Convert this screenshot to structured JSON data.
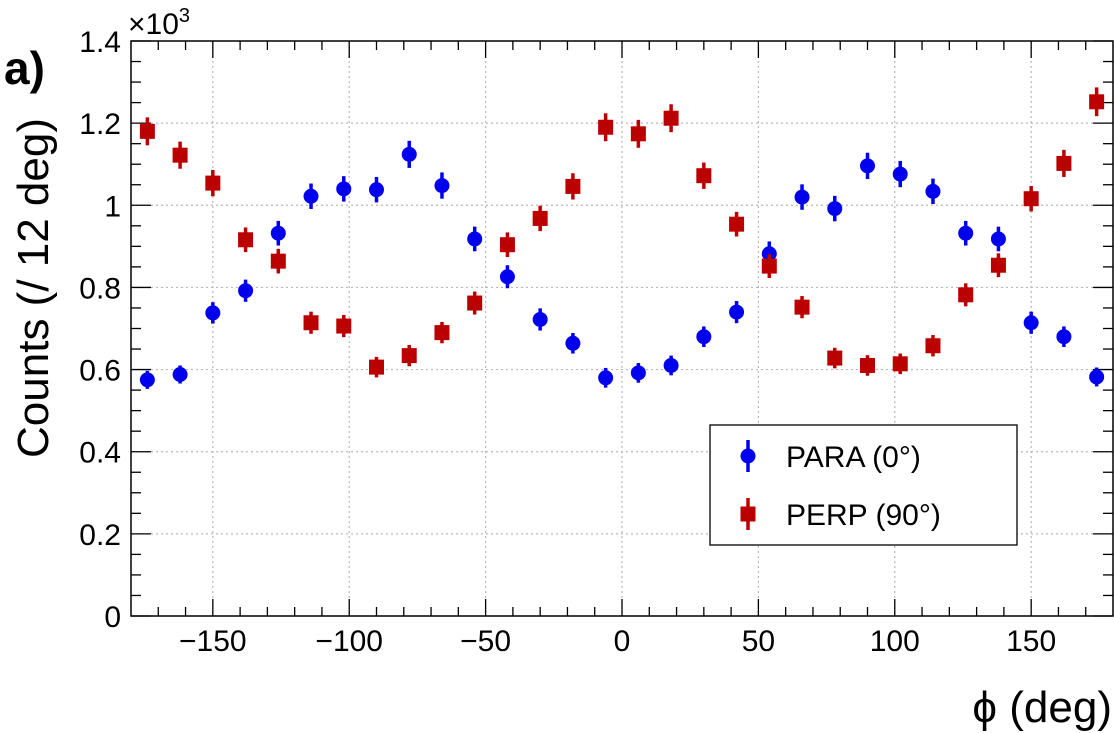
{
  "panel_label": "a)",
  "chart_data": {
    "type": "scatter",
    "xlabel": "ϕ (deg)",
    "ylabel": "Counts (/ 12 deg)",
    "y_exponent_label": "×10",
    "y_exponent_power": "3",
    "xlim": [
      -180,
      180
    ],
    "ylim": [
      0,
      1.4
    ],
    "x_ticks": [
      -150,
      -100,
      -50,
      0,
      50,
      100,
      150
    ],
    "x_tick_labels": [
      "−150",
      "−100",
      "−50",
      "0",
      "50",
      "100",
      "150"
    ],
    "y_ticks": [
      0,
      0.2,
      0.4,
      0.6,
      0.8,
      1,
      1.2,
      1.4
    ],
    "y_tick_labels": [
      "0",
      "0.2",
      "0.4",
      "0.6",
      "0.8",
      "1",
      "1.2",
      "1.4"
    ],
    "grid": true,
    "legend_position": "bottom-right",
    "x": [
      -174,
      -162,
      -150,
      -138,
      -126,
      -114,
      -102,
      -90,
      -78,
      -66,
      -54,
      -42,
      -30,
      -18,
      -6,
      6,
      18,
      30,
      42,
      54,
      66,
      78,
      90,
      102,
      114,
      126,
      138,
      150,
      162,
      174
    ],
    "series": [
      {
        "name": "PARA (0°)",
        "marker": "circle",
        "color": "#0000ee",
        "values": [
          0.575,
          0.588,
          0.738,
          0.792,
          0.932,
          1.022,
          1.04,
          1.038,
          1.124,
          1.048,
          0.918,
          0.826,
          0.722,
          0.664,
          0.58,
          0.592,
          0.61,
          0.68,
          0.74,
          0.882,
          1.02,
          0.992,
          1.096,
          1.076,
          1.034,
          0.932,
          0.918,
          0.714,
          0.68,
          0.582
        ],
        "errors": [
          0.022,
          0.022,
          0.026,
          0.027,
          0.03,
          0.031,
          0.031,
          0.031,
          0.033,
          0.032,
          0.03,
          0.028,
          0.027,
          0.025,
          0.024,
          0.024,
          0.024,
          0.025,
          0.027,
          0.03,
          0.031,
          0.031,
          0.032,
          0.032,
          0.031,
          0.03,
          0.03,
          0.027,
          0.025,
          0.023
        ]
      },
      {
        "name": "PERP (90°)",
        "marker": "square",
        "color": "#bb0000",
        "values": [
          1.18,
          1.122,
          1.054,
          0.916,
          0.864,
          0.714,
          0.706,
          0.606,
          0.634,
          0.69,
          0.762,
          0.904,
          0.968,
          1.046,
          1.19,
          1.174,
          1.212,
          1.072,
          0.954,
          0.852,
          0.752,
          0.628,
          0.61,
          0.614,
          0.658,
          0.782,
          0.854,
          1.016,
          1.102,
          1.252
        ],
        "errors": [
          0.034,
          0.033,
          0.032,
          0.03,
          0.03,
          0.027,
          0.027,
          0.025,
          0.026,
          0.026,
          0.028,
          0.03,
          0.031,
          0.032,
          0.034,
          0.034,
          0.034,
          0.032,
          0.03,
          0.029,
          0.027,
          0.025,
          0.025,
          0.025,
          0.026,
          0.028,
          0.029,
          0.031,
          0.033,
          0.035
        ]
      }
    ]
  }
}
